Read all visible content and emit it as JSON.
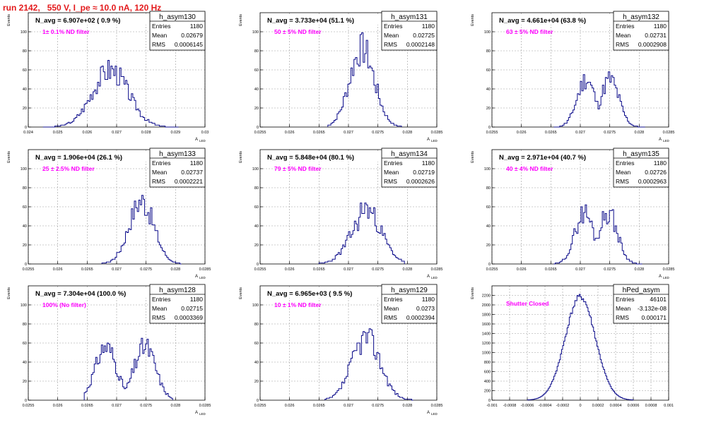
{
  "page_title": "run 2142,   550 V, I_pe ≈ 10.0 nA, 120 Hz",
  "colors": {
    "histogram": "#0b0b8a",
    "title": "#e31a1c",
    "note": "#ff00ff",
    "grid": "#9e9e9e"
  },
  "chart_data": [
    {
      "type": "histogram",
      "name": "h_asym130",
      "stats": {
        "Entries": "1180",
        "Mean": "0.02679",
        "RMS": "0.0006145"
      },
      "n_avg_label": "N_avg = 6.907e+02 ( 0.9 %)",
      "note": "1± 0.1% ND filter",
      "xlabel": "A",
      "xlabel_sub": "LED",
      "ylabel": "Events",
      "xlim": [
        0.024,
        0.03
      ],
      "ylim": [
        0,
        120
      ],
      "xticks": [
        0.024,
        0.025,
        0.026,
        0.027,
        0.028,
        0.029,
        0.03
      ],
      "xtick_labels": [
        "0.024",
        "0.025",
        "0.026",
        "0.027",
        "0.028",
        "0.029",
        "0.03"
      ],
      "yticks": [
        0,
        20,
        40,
        60,
        80,
        100
      ],
      "hist": {
        "mean": 0.02679,
        "sigma": 0.00061,
        "peak": 60,
        "lo": 0.0245,
        "hi": 0.0291,
        "nbins": 92,
        "shape": "gauss",
        "seed": 3
      }
    },
    {
      "type": "histogram",
      "name": "h_asym131",
      "stats": {
        "Entries": "1180",
        "Mean": "0.02725",
        "RMS": "0.0002148"
      },
      "n_avg_label": "N_avg = 3.733e+04 (51.1 %)",
      "note": "50 ± 5% ND filter",
      "xlabel": "A",
      "xlabel_sub": "LED",
      "ylabel": "Events",
      "xlim": [
        0.0255,
        0.0285
      ],
      "ylim": [
        0,
        120
      ],
      "xticks": [
        0.0255,
        0.026,
        0.0265,
        0.027,
        0.0275,
        0.028,
        0.0285
      ],
      "xtick_labels": [
        "0.0255",
        "0.026",
        "0.0265",
        "0.027",
        "0.0275",
        "0.028",
        "0.0285"
      ],
      "yticks": [
        0,
        20,
        40,
        60,
        80,
        100
      ],
      "hist": {
        "mean": 0.02723,
        "sigma": 0.00021,
        "peak": 82,
        "lo": 0.02665,
        "hi": 0.0279,
        "nbins": 48,
        "shape": "gauss",
        "seed": 7
      }
    },
    {
      "type": "histogram",
      "name": "h_asym132",
      "stats": {
        "Entries": "1180",
        "Mean": "0.02731",
        "RMS": "0.0002908"
      },
      "n_avg_label": "N_avg = 4.661e+04 (63.8 %)",
      "note": "63 ± 5% ND filter",
      "xlabel": "A",
      "xlabel_sub": "LED",
      "ylabel": "Events",
      "xlim": [
        0.0255,
        0.0285
      ],
      "ylim": [
        0,
        120
      ],
      "xticks": [
        0.0255,
        0.026,
        0.0265,
        0.027,
        0.0275,
        0.028,
        0.0285
      ],
      "xtick_labels": [
        "0.0255",
        "0.026",
        "0.0265",
        "0.027",
        "0.0275",
        "0.028",
        "0.0285"
      ],
      "yticks": [
        0,
        20,
        40,
        60,
        80,
        100
      ],
      "hist": {
        "mean": 0.0273,
        "sigma": 0.00028,
        "peak": 50,
        "lo": 0.02655,
        "hi": 0.0281,
        "nbins": 62,
        "shape": "double",
        "sep": 0.0004,
        "seed": 11
      }
    },
    {
      "type": "histogram",
      "name": "h_asym133",
      "stats": {
        "Entries": "1180",
        "Mean": "0.02737",
        "RMS": "0.0002221"
      },
      "n_avg_label": "N_avg = 1.906e+04 (26.1 %)",
      "note": "25 ± 2.5% ND filter",
      "xlabel": "A",
      "xlabel_sub": "LED",
      "ylabel": "Events",
      "xlim": [
        0.0255,
        0.0285
      ],
      "ylim": [
        0,
        120
      ],
      "xticks": [
        0.0255,
        0.026,
        0.0265,
        0.027,
        0.0275,
        0.028,
        0.0285
      ],
      "xtick_labels": [
        "0.0255",
        "0.026",
        "0.0265",
        "0.027",
        "0.0275",
        "0.028",
        "0.0285"
      ],
      "yticks": [
        0,
        20,
        40,
        60,
        80,
        100
      ],
      "hist": {
        "mean": 0.02742,
        "sigma": 0.00021,
        "peak": 66,
        "lo": 0.02675,
        "hi": 0.0281,
        "nbins": 54,
        "shape": "gauss",
        "seed": 17
      }
    },
    {
      "type": "histogram",
      "name": "h_asym134",
      "stats": {
        "Entries": "1180",
        "Mean": "0.02719",
        "RMS": "0.0002626"
      },
      "n_avg_label": "N_avg = 5.848e+04 (80.1 %)",
      "note": "79 ± 5% ND filter",
      "xlabel": "A",
      "xlabel_sub": "LED",
      "ylabel": "Events",
      "xlim": [
        0.0255,
        0.0285
      ],
      "ylim": [
        0,
        120
      ],
      "xticks": [
        0.0255,
        0.026,
        0.0265,
        0.027,
        0.0275,
        0.028,
        0.0285
      ],
      "xtick_labels": [
        "0.0255",
        "0.026",
        "0.0265",
        "0.027",
        "0.0275",
        "0.028",
        "0.0285"
      ],
      "yticks": [
        0,
        20,
        40,
        60,
        80,
        100
      ],
      "hist": {
        "mean": 0.0272,
        "sigma": 0.00026,
        "peak": 58,
        "lo": 0.0265,
        "hi": 0.02795,
        "nbins": 58,
        "shape": "skew",
        "seed": 23
      }
    },
    {
      "type": "histogram",
      "name": "h_asym135",
      "stats": {
        "Entries": "1180",
        "Mean": "0.02726",
        "RMS": "0.0002963"
      },
      "n_avg_label": "N_avg = 2.971e+04 (40.7 %)",
      "note": "40 ± 4% ND filter",
      "xlabel": "A",
      "xlabel_sub": "LED",
      "ylabel": "Events",
      "xlim": [
        0.0255,
        0.0285
      ],
      "ylim": [
        0,
        120
      ],
      "xticks": [
        0.0255,
        0.026,
        0.0265,
        0.027,
        0.0275,
        0.028,
        0.0285
      ],
      "xtick_labels": [
        "0.0255",
        "0.026",
        "0.0265",
        "0.027",
        "0.0275",
        "0.028",
        "0.0285"
      ],
      "yticks": [
        0,
        20,
        40,
        60,
        80,
        100
      ],
      "hist": {
        "mean": 0.02727,
        "sigma": 0.00029,
        "peak": 54,
        "lo": 0.02655,
        "hi": 0.02805,
        "nbins": 62,
        "shape": "double",
        "sep": 0.0004,
        "seed": 29
      }
    },
    {
      "type": "histogram",
      "name": "h_asym128",
      "stats": {
        "Entries": "1180",
        "Mean": "0.02715",
        "RMS": "0.0003369"
      },
      "n_avg_label": "N_avg = 7.304e+04 (100.0 %)",
      "note": "100% (No filter)",
      "xlabel": "A",
      "xlabel_sub": "LED",
      "ylabel": "Events",
      "xlim": [
        0.0255,
        0.0285
      ],
      "ylim": [
        0,
        120
      ],
      "xticks": [
        0.0255,
        0.026,
        0.0265,
        0.027,
        0.0275,
        0.028,
        0.0285
      ],
      "xtick_labels": [
        "0.0255",
        "0.026",
        "0.0265",
        "0.027",
        "0.0275",
        "0.028",
        "0.0285"
      ],
      "yticks": [
        0,
        20,
        40,
        60,
        80,
        100
      ],
      "hist": {
        "mean": 0.02715,
        "sigma": 0.00033,
        "peak": 56,
        "lo": 0.02645,
        "hi": 0.02795,
        "nbins": 62,
        "shape": "double",
        "sep": 0.00066,
        "seed": 31
      }
    },
    {
      "type": "histogram",
      "name": "h_asym129",
      "stats": {
        "Entries": "1180",
        "Mean": "0.0273",
        "RMS": "0.0002394"
      },
      "n_avg_label": "N_avg = 6.965e+03 ( 9.5 %)",
      "note": "10 ± 1% ND filter",
      "xlabel": "A",
      "xlabel_sub": "LED",
      "ylabel": "Events",
      "xlim": [
        0.0255,
        0.0285
      ],
      "ylim": [
        0,
        120
      ],
      "xticks": [
        0.0255,
        0.026,
        0.0265,
        0.027,
        0.0275,
        0.028,
        0.0285
      ],
      "xtick_labels": [
        "0.0255",
        "0.026",
        "0.0265",
        "0.027",
        "0.0275",
        "0.028",
        "0.0285"
      ],
      "yticks": [
        0,
        20,
        40,
        60,
        80,
        100
      ],
      "hist": {
        "mean": 0.0273,
        "sigma": 0.00024,
        "peak": 66,
        "lo": 0.0266,
        "hi": 0.0281,
        "nbins": 58,
        "shape": "gauss",
        "seed": 37
      }
    },
    {
      "type": "histogram",
      "name": "hPed_asym",
      "stats": {
        "Entries": "46101",
        "Mean": "-3.132e-08",
        "RMS": "0.000171"
      },
      "n_avg_label": "",
      "note": "Shutter Closed",
      "xlabel": "",
      "xlabel_sub": "",
      "ylabel": "Events",
      "xlim": [
        -0.001,
        0.001
      ],
      "ylim": [
        0,
        2400
      ],
      "xticks": [
        -0.001,
        -0.0008,
        -0.0006,
        -0.0004,
        -0.0002,
        0,
        0.0002,
        0.0004,
        0.0006,
        0.0008,
        0.001
      ],
      "xtick_labels": [
        "-0.001",
        "-0.0008",
        "-0.0006",
        "-0.0004",
        "-0.0002",
        "0",
        "0.0002",
        "0.0004",
        "0.0006",
        "0.0008",
        "0.001"
      ],
      "yticks": [
        0,
        200,
        400,
        600,
        800,
        1000,
        1200,
        1400,
        1600,
        1800,
        2000,
        2200
      ],
      "hist": {
        "mean": 0.0,
        "sigma": 0.000171,
        "peak": 2170,
        "lo": -0.0006,
        "hi": 0.0006,
        "nbins": 96,
        "shape": "smooth",
        "seed": 41
      }
    }
  ]
}
